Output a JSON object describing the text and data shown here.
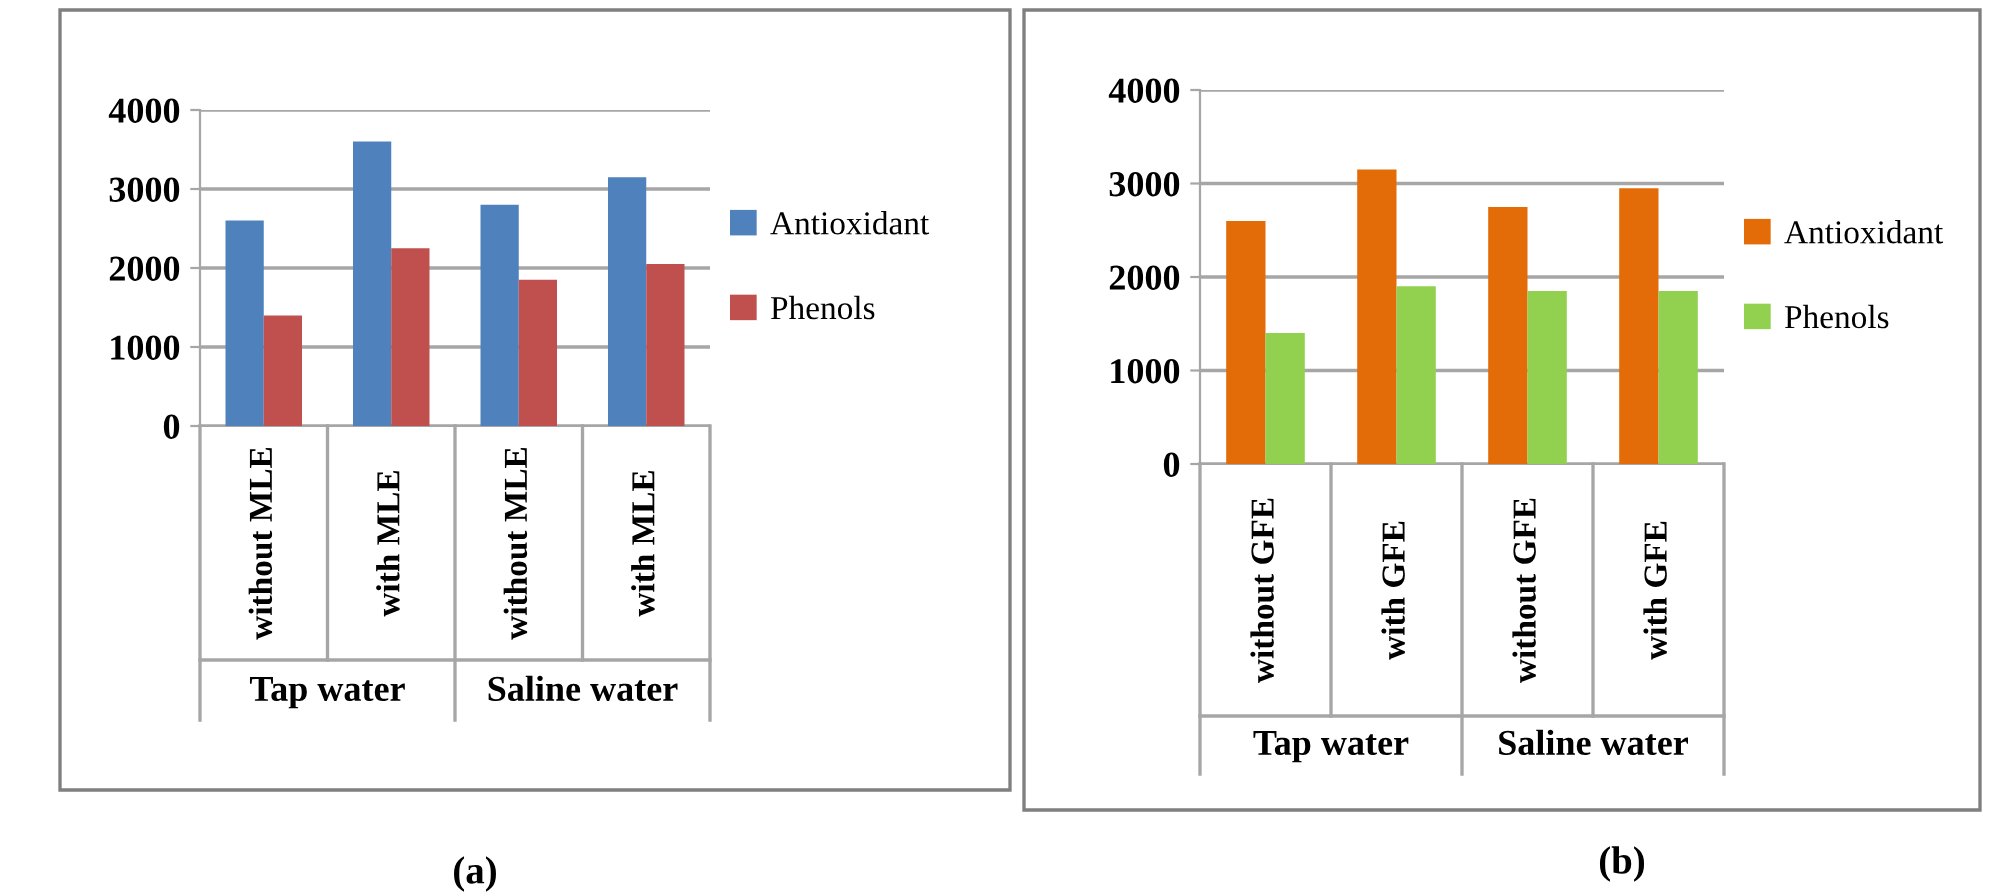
{
  "chart_data": [
    {
      "type": "bar",
      "title": "(a)",
      "categories": [
        "without MLE",
        "with MLE",
        "without MLE",
        "with MLE"
      ],
      "series": [
        {
          "name": "Antioxidant",
          "color": "#4f81bd",
          "values": [
            2600,
            3600,
            2800,
            3150
          ]
        },
        {
          "name": "Phenols",
          "color": "#c0504d",
          "values": [
            1400,
            2250,
            1850,
            2050
          ]
        }
      ],
      "annotations": [
        "Tap water",
        "Saline water"
      ],
      "ylim": [
        0,
        4000
      ],
      "yticks": [
        0,
        1000,
        2000,
        3000,
        4000
      ],
      "grid": "y",
      "legend": "right"
    },
    {
      "type": "bar",
      "title": "(b)",
      "categories": [
        "without GFE",
        "with GFE",
        "without GFE",
        "with GFE"
      ],
      "series": [
        {
          "name": "Antioxidant",
          "color": "#e36c09",
          "values": [
            2600,
            3150,
            2750,
            2950
          ]
        },
        {
          "name": "Phenols",
          "color": "#92d050",
          "values": [
            1400,
            1900,
            1850,
            1850
          ]
        }
      ],
      "annotations": [
        "Tap water",
        "Saline water"
      ],
      "ylim": [
        0,
        4000
      ],
      "yticks": [
        0,
        1000,
        2000,
        3000,
        4000
      ],
      "grid": "y",
      "legend": "right"
    }
  ]
}
